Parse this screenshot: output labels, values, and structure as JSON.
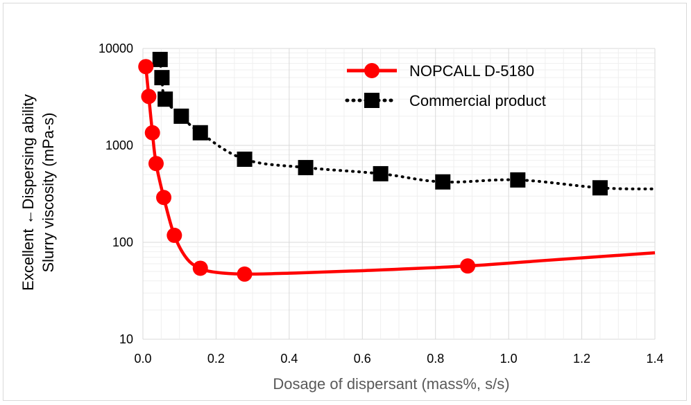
{
  "colors": {
    "nopcall": "#ff0000",
    "commercial": "#000000",
    "major_grid": "#d9d9d9",
    "minor_grid": "#efefef",
    "xlabel": "#595959",
    "ylabel": "#000000"
  },
  "chart_data": {
    "type": "scatter",
    "xlabel": "Dosage of dispersant (mass%, s/s)",
    "ylabel": [
      "Excellent ←Dispersing ability",
      "Slurry viscosity (mPa-s)"
    ],
    "xlim": [
      0,
      1.4
    ],
    "ylim": [
      10,
      10000
    ],
    "y_scale": "log",
    "x_ticks": [
      "0.0",
      "0.2",
      "0.4",
      "0.6",
      "0.8",
      "1.0",
      "1.2",
      "1.4"
    ],
    "y_ticks": [
      "10",
      "100",
      "1000",
      "10000"
    ],
    "grid": true,
    "legend_position": "top-right",
    "series": [
      {
        "name": "NOPCALL D-5180",
        "style": "solid-line-circle-markers",
        "color": "#ff0000",
        "points": [
          [
            0.008,
            6500
          ],
          [
            0.016,
            3200
          ],
          [
            0.026,
            1350
          ],
          [
            0.036,
            650
          ],
          [
            0.057,
            290
          ],
          [
            0.086,
            118
          ],
          [
            0.157,
            54
          ],
          [
            0.278,
            47
          ],
          [
            0.888,
            57
          ]
        ],
        "curve": [
          [
            0.008,
            6500
          ],
          [
            0.016,
            3200
          ],
          [
            0.026,
            1350
          ],
          [
            0.036,
            650
          ],
          [
            0.057,
            290
          ],
          [
            0.086,
            118
          ],
          [
            0.12,
            68
          ],
          [
            0.157,
            54
          ],
          [
            0.2,
            49
          ],
          [
            0.278,
            47
          ],
          [
            0.4,
            48
          ],
          [
            0.6,
            51
          ],
          [
            0.888,
            57
          ],
          [
            1.1,
            65
          ],
          [
            1.4,
            78
          ]
        ]
      },
      {
        "name": "Commercial product",
        "style": "dotted-line-square-markers",
        "color": "#000000",
        "points": [
          [
            0.047,
            7700
          ],
          [
            0.052,
            5000
          ],
          [
            0.061,
            3000
          ],
          [
            0.105,
            2000
          ],
          [
            0.157,
            1350
          ],
          [
            0.278,
            720
          ],
          [
            0.445,
            590
          ],
          [
            0.65,
            510
          ],
          [
            0.82,
            420
          ],
          [
            1.025,
            440
          ],
          [
            1.25,
            365
          ]
        ],
        "curve": [
          [
            0.047,
            7700
          ],
          [
            0.052,
            5000
          ],
          [
            0.061,
            3000
          ],
          [
            0.105,
            2000
          ],
          [
            0.157,
            1350
          ],
          [
            0.278,
            720
          ],
          [
            0.445,
            590
          ],
          [
            0.65,
            510
          ],
          [
            0.82,
            420
          ],
          [
            1.025,
            440
          ],
          [
            1.25,
            365
          ],
          [
            1.4,
            355
          ]
        ]
      }
    ]
  }
}
